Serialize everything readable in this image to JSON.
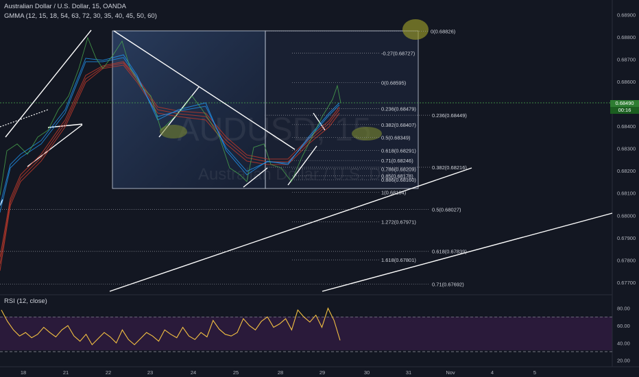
{
  "header": {
    "title": "Australian Dollar / U.S. Dollar, 15, OANDA",
    "indicator": "GMMA (12, 15, 18, 54, 63, 72, 30, 35, 40, 45, 50, 60)"
  },
  "watermark": {
    "symbol": "AUDUSD, 15",
    "name": "Australian Dollar / U.S. Dollar"
  },
  "price_badge": {
    "price": "0.68490",
    "countdown": "00:16"
  },
  "rsi": {
    "label": "RSI (12, close)"
  },
  "colors": {
    "background": "#131722",
    "rsi_line": "#f5c242",
    "band_fill": "#2a1a3a",
    "gmma_long": "#c0392b",
    "gmma_short": "#2196f3",
    "current_price": "#4caf50",
    "highlight_ellipse": "#9a9a2a"
  },
  "chart_data": [
    {
      "type": "line",
      "title": "Australian Dollar / U.S. Dollar, 15, OANDA",
      "x_ticks": [
        "18",
        "21",
        "22",
        "23",
        "24",
        "25",
        "28",
        "29",
        "30",
        "31",
        "Nov",
        "4",
        "5"
      ],
      "y_ticks": [
        "0.68900",
        "0.68800",
        "0.68700",
        "0.68600",
        "0.68400",
        "0.68300",
        "0.68200",
        "0.68100",
        "0.68000",
        "0.67900",
        "0.67800",
        "0.67700"
      ],
      "ylim": [
        0.6766,
        0.6895
      ],
      "current_price": 0.6849,
      "series": [
        {
          "values": [
            0.6822,
            0.6828,
            0.6835,
            0.6844,
            0.6852,
            0.6861,
            0.6871,
            0.6879,
            0.6874,
            0.6868,
            0.687,
            0.688,
            0.6865,
            0.6858,
            0.685,
            0.6845,
            0.6838,
            0.6842,
            0.6852,
            0.6847,
            0.6838,
            0.6826,
            0.6818,
            0.6812,
            0.6825,
            0.682,
            0.6822,
            0.6815,
            0.6808,
            0.6812,
            0.6818,
            0.683,
            0.6815,
            0.6818,
            0.6812,
            0.6822,
            0.6832,
            0.684,
            0.6846,
            0.684,
            0.685,
            0.6858,
            0.6852,
            0.6849
          ]
        }
      ],
      "fib_levels": [
        {
          "label": "0(0.68826)",
          "value": 0.68826
        },
        {
          "label": "-0.27(0.68727)",
          "value": 0.68727
        },
        {
          "label": "0(0.68595)",
          "value": 0.68595
        },
        {
          "label": "0.236(0.68479)",
          "value": 0.68479
        },
        {
          "label": "0.236(0.68449)",
          "value": 0.68449
        },
        {
          "label": "0.382(0.68407)",
          "value": 0.68407
        },
        {
          "label": "0.5(0.68349)",
          "value": 0.68349
        },
        {
          "label": "0.618(0.68291)",
          "value": 0.68291
        },
        {
          "label": "0.71(0.68246)",
          "value": 0.68246
        },
        {
          "label": "0.382(0.68216)",
          "value": 0.68216
        },
        {
          "label": "0.786(0.68209)",
          "value": 0.68209
        },
        {
          "label": "0.85(0.68178)",
          "value": 0.68178
        },
        {
          "label": "0.886(0.68160)",
          "value": 0.6816
        },
        {
          "label": "1(0.68104)",
          "value": 0.68104
        },
        {
          "label": "0.5(0.68027)",
          "value": 0.68027
        },
        {
          "label": "1.272(0.67971)",
          "value": 0.67971
        },
        {
          "label": "0.618(0.67839)",
          "value": 0.67839
        },
        {
          "label": "1.618(0.67801)",
          "value": 0.67801
        },
        {
          "label": "0.71(0.67692)",
          "value": 0.67692
        }
      ]
    },
    {
      "type": "line",
      "title": "RSI (12, close)",
      "y_ticks": [
        "80.00",
        "60.00",
        "40.00",
        "20.00"
      ],
      "ylim": [
        15,
        90
      ],
      "bands": [
        30,
        70
      ],
      "series": [
        {
          "values": [
            78,
            65,
            55,
            48,
            52,
            46,
            50,
            58,
            52,
            47,
            55,
            60,
            48,
            42,
            50,
            38,
            45,
            52,
            47,
            40,
            55,
            44,
            38,
            45,
            52,
            48,
            42,
            55,
            50,
            46,
            58,
            48,
            44,
            52,
            47,
            66,
            56,
            50,
            48,
            52,
            68,
            60,
            55,
            65,
            70,
            58,
            62,
            68,
            55,
            78,
            70,
            64,
            72,
            58,
            80,
            66,
            43
          ]
        }
      ]
    }
  ]
}
